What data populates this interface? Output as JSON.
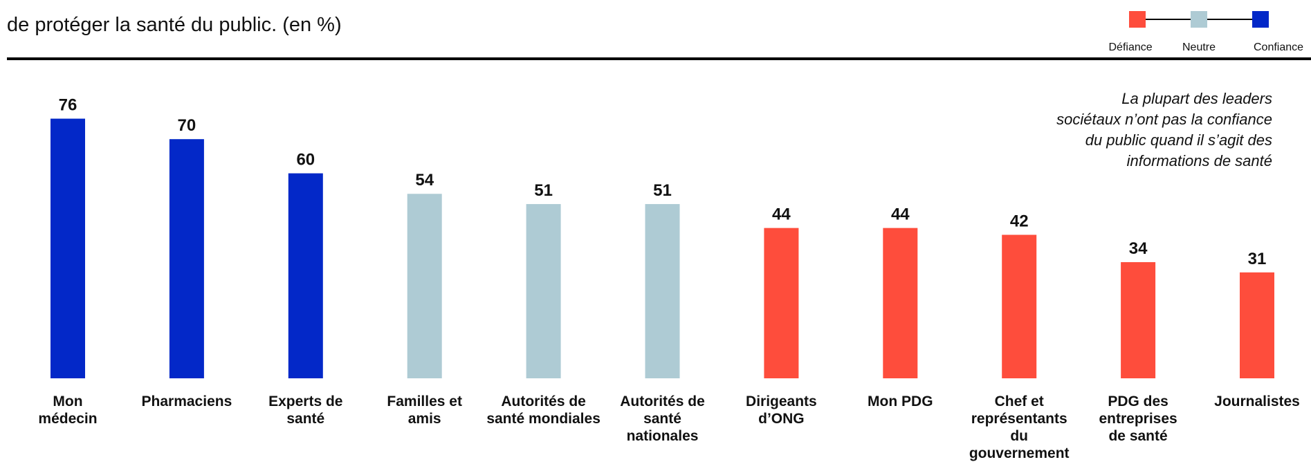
{
  "chart_data": {
    "type": "bar",
    "subtitle": "de protéger la santé du public. (en %)",
    "annotation": "La plupart des leaders\nsociétaux n’ont pas la confiance\ndu public  quand il s’agit des\ninformations de santé",
    "categories": [
      "Mon\nmédecin",
      "Pharmaciens",
      "Experts de\nsanté",
      "Familles et\namis",
      "Autorités de\nsanté mondiales",
      "Autorités de\nsanté\nnationales",
      "Dirigeants\nd’ONG",
      "Mon PDG",
      "Chef et\nreprésentants du\ngouvernement",
      "PDG des\nentreprises\nde santé",
      "Journalistes"
    ],
    "values": [
      76,
      70,
      60,
      54,
      51,
      51,
      44,
      44,
      42,
      34,
      31
    ],
    "colors": [
      "#0328c8",
      "#0328c8",
      "#0328c8",
      "#aecbd4",
      "#aecbd4",
      "#aecbd4",
      "#fe4d3c",
      "#fe4d3c",
      "#fe4d3c",
      "#fe4d3c",
      "#fe4d3c"
    ],
    "legend": [
      {
        "name": "Défiance",
        "color": "#fe4d3c"
      },
      {
        "name": "Neutre",
        "color": "#aecbd4"
      },
      {
        "name": "Confiance",
        "color": "#0328c8"
      }
    ],
    "ylim": [
      0,
      100
    ]
  }
}
